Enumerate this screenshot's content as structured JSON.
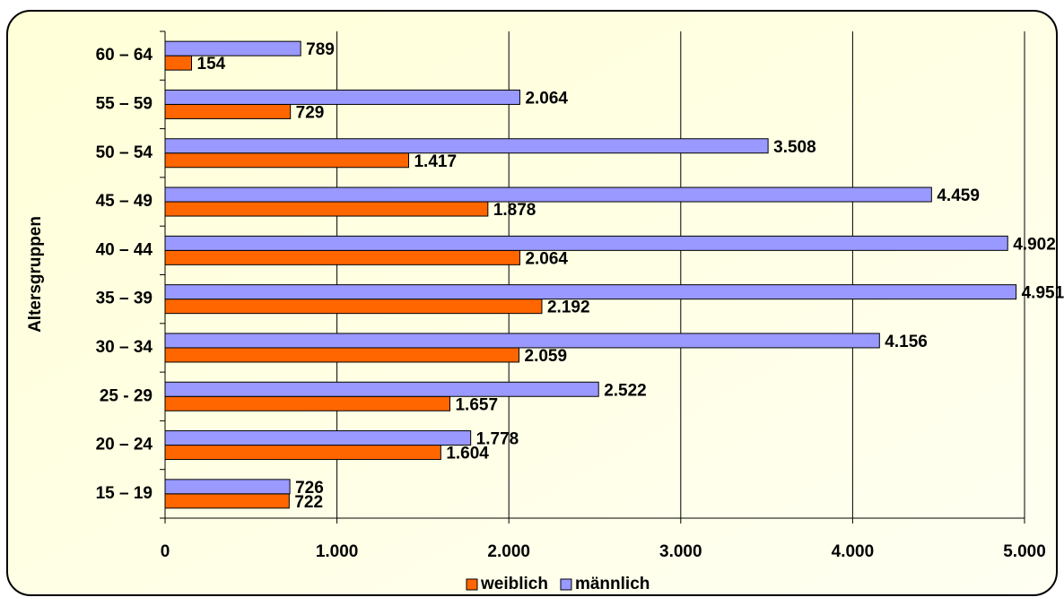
{
  "chart_data": {
    "type": "bar",
    "orientation": "horizontal",
    "ylabel": "Altersgruppen",
    "categories": [
      "15 – 19",
      "20 – 24",
      "25 - 29",
      "30 – 34",
      "35 – 39",
      "40 – 44",
      "45 – 49",
      "50 – 54",
      "55 – 59",
      "60 – 64"
    ],
    "series": [
      {
        "name": "weiblich",
        "color": "#ff6600",
        "values": [
          722,
          1604,
          1657,
          2059,
          2192,
          2064,
          1878,
          1417,
          729,
          154
        ],
        "value_labels": [
          "722",
          "1.604",
          "1.657",
          "2.059",
          "2.192",
          "2.064",
          "1.878",
          "1.417",
          "729",
          "154"
        ]
      },
      {
        "name": "männlich",
        "color": "#9999ff",
        "values": [
          726,
          1778,
          2522,
          4156,
          4951,
          4902,
          4459,
          3508,
          2064,
          789
        ],
        "value_labels": [
          "726",
          "1.778",
          "2.522",
          "4.156",
          "4.951",
          "4.902",
          "4.459",
          "3.508",
          "2.064",
          "789"
        ]
      }
    ],
    "xlim": [
      0,
      5000
    ],
    "xticks": [
      0,
      {
        "value": 1000,
        "label": "1.000"
      },
      {
        "value": 2000,
        "label": "2.000"
      },
      {
        "value": 3000,
        "label": "3.000"
      },
      {
        "value": 4000,
        "label": "4.000"
      },
      {
        "value": 5000,
        "label": "5.000"
      }
    ],
    "grid": true,
    "legend": "bottom"
  }
}
